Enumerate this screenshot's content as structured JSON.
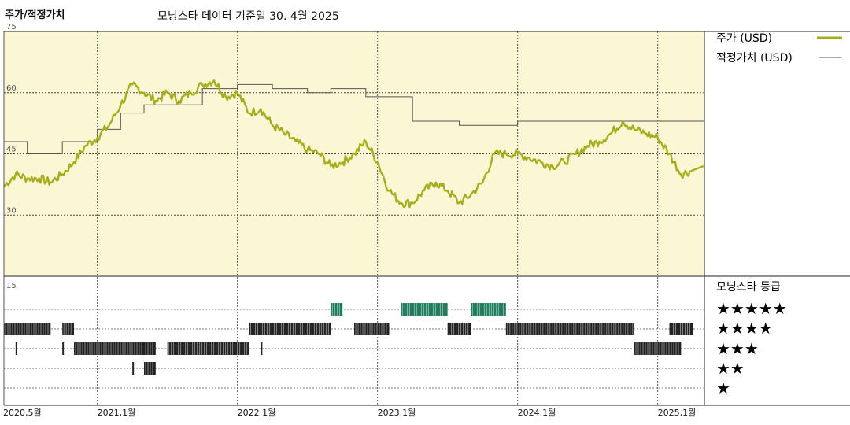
{
  "header": {
    "left_title": "주가/적정가치",
    "right_title": "모닝스타 데이터 기준일 30. 4월 2025"
  },
  "legend": {
    "price_label": "주가 (USD)",
    "fair_label": "적정가치 (USD)",
    "rating_title": "모닝스타 등급",
    "star_rows": [
      "★★★★★",
      "★★★★",
      "★★★",
      "★★",
      "★"
    ]
  },
  "colors": {
    "price_line": "#a8ad1e",
    "fair_line": "#555555",
    "panel_bg": "#fbf7d4",
    "rating_dark": "#222222",
    "rating_green": "#1f7a5e"
  },
  "chart_data": {
    "type": "line",
    "y_ticks": [
      "75",
      "60",
      "45",
      "30"
    ],
    "ylim": [
      15,
      75
    ],
    "lower_panel_tick": "15",
    "x_ticks": [
      "2020,5월",
      "2021,1월",
      "2022,1월",
      "2023,1월",
      "2024,1월",
      "2025,1월"
    ],
    "x_range": [
      "2020-05",
      "2025-05"
    ],
    "series": [
      {
        "name": "주가 (USD)",
        "points": [
          [
            "2020-05",
            37
          ],
          [
            "2020-06",
            40
          ],
          [
            "2020-07",
            39
          ],
          [
            "2020-08",
            39
          ],
          [
            "2020-09",
            38
          ],
          [
            "2020-10",
            40
          ],
          [
            "2020-11",
            43
          ],
          [
            "2020-12",
            47
          ],
          [
            "2021-01",
            49
          ],
          [
            "2021-02",
            52
          ],
          [
            "2021-03",
            57
          ],
          [
            "2021-04",
            62
          ],
          [
            "2021-05",
            60
          ],
          [
            "2021-06",
            58
          ],
          [
            "2021-07",
            60
          ],
          [
            "2021-08",
            58
          ],
          [
            "2021-09",
            60
          ],
          [
            "2021-10",
            62
          ],
          [
            "2021-11",
            63
          ],
          [
            "2021-12",
            59
          ],
          [
            "2022-01",
            60
          ],
          [
            "2022-02",
            55
          ],
          [
            "2022-03",
            56
          ],
          [
            "2022-04",
            52
          ],
          [
            "2022-05",
            50
          ],
          [
            "2022-06",
            48
          ],
          [
            "2022-07",
            46
          ],
          [
            "2022-08",
            45
          ],
          [
            "2022-09",
            42
          ],
          [
            "2022-10",
            43
          ],
          [
            "2022-11",
            45
          ],
          [
            "2022-12",
            48
          ],
          [
            "2023-01",
            43
          ],
          [
            "2023-02",
            36
          ],
          [
            "2023-03",
            33
          ],
          [
            "2023-04",
            33
          ],
          [
            "2023-05",
            36
          ],
          [
            "2023-06",
            38
          ],
          [
            "2023-07",
            36
          ],
          [
            "2023-08",
            33
          ],
          [
            "2023-09",
            35
          ],
          [
            "2023-10",
            38
          ],
          [
            "2023-11",
            45
          ],
          [
            "2023-12",
            45
          ],
          [
            "2024-01",
            45
          ],
          [
            "2024-02",
            44
          ],
          [
            "2024-03",
            43
          ],
          [
            "2024-04",
            42
          ],
          [
            "2024-05",
            43
          ],
          [
            "2024-06",
            45
          ],
          [
            "2024-07",
            47
          ],
          [
            "2024-08",
            48
          ],
          [
            "2024-09",
            50
          ],
          [
            "2024-10",
            53
          ],
          [
            "2024-11",
            51
          ],
          [
            "2024-12",
            50
          ],
          [
            "2025-01",
            49
          ],
          [
            "2025-02",
            45
          ],
          [
            "2025-03",
            40
          ],
          [
            "2025-04",
            41
          ]
        ]
      },
      {
        "name": "적정가치 (USD)",
        "step_points": [
          [
            "2020-05",
            48
          ],
          [
            "2020-07",
            45
          ],
          [
            "2020-10",
            48
          ],
          [
            "2021-01",
            51
          ],
          [
            "2021-03",
            55
          ],
          [
            "2021-05",
            57
          ],
          [
            "2021-10",
            61
          ],
          [
            "2022-01",
            62
          ],
          [
            "2022-04",
            61
          ],
          [
            "2022-07",
            60
          ],
          [
            "2022-09",
            61
          ],
          [
            "2022-12",
            59
          ],
          [
            "2023-04",
            53
          ],
          [
            "2023-08",
            52
          ],
          [
            "2024-01",
            53
          ],
          [
            "2025-04",
            53
          ]
        ]
      }
    ],
    "rating_periods": [
      {
        "stars": 5,
        "start": "2022-09",
        "end": "2022-10"
      },
      {
        "stars": 5,
        "start": "2023-03",
        "end": "2023-07"
      },
      {
        "stars": 5,
        "start": "2023-09",
        "end": "2023-12"
      },
      {
        "stars": 4,
        "start": "2020-05",
        "end": "2020-09"
      },
      {
        "stars": 4,
        "start": "2020-10",
        "end": "2020-11"
      },
      {
        "stars": 4,
        "start": "2022-02",
        "end": "2022-03"
      },
      {
        "stars": 4,
        "start": "2022-03",
        "end": "2022-09"
      },
      {
        "stars": 4,
        "start": "2022-11",
        "end": "2023-02"
      },
      {
        "stars": 4,
        "start": "2023-07",
        "end": "2023-09"
      },
      {
        "stars": 4,
        "start": "2023-12",
        "end": "2024-11"
      },
      {
        "stars": 4,
        "start": "2025-02",
        "end": "2025-04"
      },
      {
        "stars": 3,
        "start": "2020-06",
        "end": "2020-06"
      },
      {
        "stars": 3,
        "start": "2020-10",
        "end": "2020-10"
      },
      {
        "stars": 3,
        "start": "2020-11",
        "end": "2021-05"
      },
      {
        "stars": 3,
        "start": "2021-05",
        "end": "2021-06"
      },
      {
        "stars": 3,
        "start": "2021-07",
        "end": "2022-02"
      },
      {
        "stars": 3,
        "start": "2022-03",
        "end": "2022-03"
      },
      {
        "stars": 3,
        "start": "2024-11",
        "end": "2025-03"
      },
      {
        "stars": 2,
        "start": "2021-04",
        "end": "2021-04"
      },
      {
        "stars": 2,
        "start": "2021-05",
        "end": "2021-06"
      }
    ]
  }
}
